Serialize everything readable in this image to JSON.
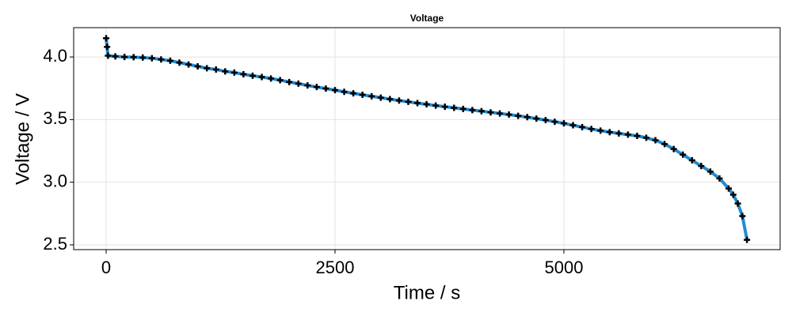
{
  "chart_data": {
    "type": "line",
    "title": "Voltage",
    "x_label": "Time / s",
    "y_label": "Voltage / V",
    "x": [
      0,
      10,
      20,
      100,
      200,
      300,
      400,
      500,
      600,
      700,
      800,
      900,
      1000,
      1100,
      1200,
      1300,
      1400,
      1500,
      1600,
      1700,
      1800,
      1900,
      2000,
      2100,
      2200,
      2300,
      2400,
      2500,
      2600,
      2700,
      2800,
      2900,
      3000,
      3100,
      3200,
      3300,
      3400,
      3500,
      3600,
      3700,
      3800,
      3900,
      4000,
      4100,
      4200,
      4300,
      4400,
      4500,
      4600,
      4700,
      4800,
      4900,
      5000,
      5100,
      5200,
      5300,
      5400,
      5500,
      5600,
      5700,
      5800,
      5900,
      6000,
      6100,
      6200,
      6300,
      6400,
      6500,
      6600,
      6700,
      6800,
      6850,
      6900,
      6950,
      7000
    ],
    "series": [
      {
        "color": "#1f8dd6",
        "marker_color": "#000000",
        "values": [
          4.15,
          4.08,
          4.01,
          4.005,
          4.0,
          3.998,
          3.995,
          3.99,
          3.98,
          3.97,
          3.955,
          3.94,
          3.925,
          3.91,
          3.9,
          3.885,
          3.875,
          3.862,
          3.85,
          3.84,
          3.828,
          3.815,
          3.8,
          3.787,
          3.773,
          3.76,
          3.748,
          3.735,
          3.722,
          3.71,
          3.698,
          3.686,
          3.675,
          3.663,
          3.652,
          3.642,
          3.632,
          3.622,
          3.612,
          3.603,
          3.594,
          3.585,
          3.576,
          3.567,
          3.558,
          3.549,
          3.54,
          3.53,
          3.52,
          3.508,
          3.496,
          3.483,
          3.47,
          3.455,
          3.44,
          3.425,
          3.412,
          3.4,
          3.39,
          3.38,
          3.37,
          3.355,
          3.335,
          3.305,
          3.265,
          3.22,
          3.175,
          3.13,
          3.085,
          3.03,
          2.95,
          2.9,
          2.83,
          2.73,
          2.54
        ]
      }
    ],
    "xlim": [
      -355,
      7362
    ],
    "ylim": [
      2.462,
      4.234
    ],
    "xticks": [
      0,
      2500,
      5000
    ],
    "yticks": [
      {
        "value": 2.5,
        "label": "2.5"
      },
      {
        "value": 3.0,
        "label": "3.0"
      },
      {
        "value": 3.5,
        "label": "3.5"
      },
      {
        "value": 4.0,
        "label": "4.0"
      }
    ],
    "grid": true
  }
}
